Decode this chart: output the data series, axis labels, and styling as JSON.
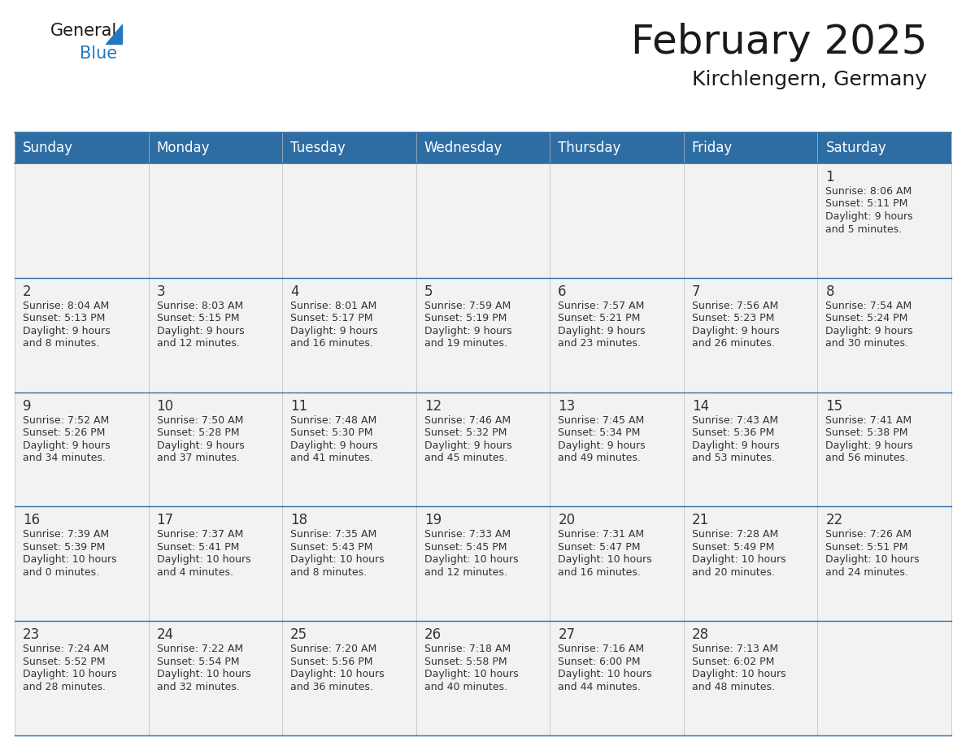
{
  "title": "February 2025",
  "subtitle": "Kirchlengern, Germany",
  "header_bg": "#2E6DA4",
  "header_text": "#FFFFFF",
  "border_color": "#2E6DA4",
  "cell_bg": "#F2F2F2",
  "text_color": "#333333",
  "day_names": [
    "Sunday",
    "Monday",
    "Tuesday",
    "Wednesday",
    "Thursday",
    "Friday",
    "Saturday"
  ],
  "days": [
    {
      "day": 1,
      "col": 6,
      "row": 0,
      "sunrise": "8:06 AM",
      "sunset": "5:11 PM",
      "daylight": "9 hours\nand 5 minutes."
    },
    {
      "day": 2,
      "col": 0,
      "row": 1,
      "sunrise": "8:04 AM",
      "sunset": "5:13 PM",
      "daylight": "9 hours\nand 8 minutes."
    },
    {
      "day": 3,
      "col": 1,
      "row": 1,
      "sunrise": "8:03 AM",
      "sunset": "5:15 PM",
      "daylight": "9 hours\nand 12 minutes."
    },
    {
      "day": 4,
      "col": 2,
      "row": 1,
      "sunrise": "8:01 AM",
      "sunset": "5:17 PM",
      "daylight": "9 hours\nand 16 minutes."
    },
    {
      "day": 5,
      "col": 3,
      "row": 1,
      "sunrise": "7:59 AM",
      "sunset": "5:19 PM",
      "daylight": "9 hours\nand 19 minutes."
    },
    {
      "day": 6,
      "col": 4,
      "row": 1,
      "sunrise": "7:57 AM",
      "sunset": "5:21 PM",
      "daylight": "9 hours\nand 23 minutes."
    },
    {
      "day": 7,
      "col": 5,
      "row": 1,
      "sunrise": "7:56 AM",
      "sunset": "5:23 PM",
      "daylight": "9 hours\nand 26 minutes."
    },
    {
      "day": 8,
      "col": 6,
      "row": 1,
      "sunrise": "7:54 AM",
      "sunset": "5:24 PM",
      "daylight": "9 hours\nand 30 minutes."
    },
    {
      "day": 9,
      "col": 0,
      "row": 2,
      "sunrise": "7:52 AM",
      "sunset": "5:26 PM",
      "daylight": "9 hours\nand 34 minutes."
    },
    {
      "day": 10,
      "col": 1,
      "row": 2,
      "sunrise": "7:50 AM",
      "sunset": "5:28 PM",
      "daylight": "9 hours\nand 37 minutes."
    },
    {
      "day": 11,
      "col": 2,
      "row": 2,
      "sunrise": "7:48 AM",
      "sunset": "5:30 PM",
      "daylight": "9 hours\nand 41 minutes."
    },
    {
      "day": 12,
      "col": 3,
      "row": 2,
      "sunrise": "7:46 AM",
      "sunset": "5:32 PM",
      "daylight": "9 hours\nand 45 minutes."
    },
    {
      "day": 13,
      "col": 4,
      "row": 2,
      "sunrise": "7:45 AM",
      "sunset": "5:34 PM",
      "daylight": "9 hours\nand 49 minutes."
    },
    {
      "day": 14,
      "col": 5,
      "row": 2,
      "sunrise": "7:43 AM",
      "sunset": "5:36 PM",
      "daylight": "9 hours\nand 53 minutes."
    },
    {
      "day": 15,
      "col": 6,
      "row": 2,
      "sunrise": "7:41 AM",
      "sunset": "5:38 PM",
      "daylight": "9 hours\nand 56 minutes."
    },
    {
      "day": 16,
      "col": 0,
      "row": 3,
      "sunrise": "7:39 AM",
      "sunset": "5:39 PM",
      "daylight": "10 hours\nand 0 minutes."
    },
    {
      "day": 17,
      "col": 1,
      "row": 3,
      "sunrise": "7:37 AM",
      "sunset": "5:41 PM",
      "daylight": "10 hours\nand 4 minutes."
    },
    {
      "day": 18,
      "col": 2,
      "row": 3,
      "sunrise": "7:35 AM",
      "sunset": "5:43 PM",
      "daylight": "10 hours\nand 8 minutes."
    },
    {
      "day": 19,
      "col": 3,
      "row": 3,
      "sunrise": "7:33 AM",
      "sunset": "5:45 PM",
      "daylight": "10 hours\nand 12 minutes."
    },
    {
      "day": 20,
      "col": 4,
      "row": 3,
      "sunrise": "7:31 AM",
      "sunset": "5:47 PM",
      "daylight": "10 hours\nand 16 minutes."
    },
    {
      "day": 21,
      "col": 5,
      "row": 3,
      "sunrise": "7:28 AM",
      "sunset": "5:49 PM",
      "daylight": "10 hours\nand 20 minutes."
    },
    {
      "day": 22,
      "col": 6,
      "row": 3,
      "sunrise": "7:26 AM",
      "sunset": "5:51 PM",
      "daylight": "10 hours\nand 24 minutes."
    },
    {
      "day": 23,
      "col": 0,
      "row": 4,
      "sunrise": "7:24 AM",
      "sunset": "5:52 PM",
      "daylight": "10 hours\nand 28 minutes."
    },
    {
      "day": 24,
      "col": 1,
      "row": 4,
      "sunrise": "7:22 AM",
      "sunset": "5:54 PM",
      "daylight": "10 hours\nand 32 minutes."
    },
    {
      "day": 25,
      "col": 2,
      "row": 4,
      "sunrise": "7:20 AM",
      "sunset": "5:56 PM",
      "daylight": "10 hours\nand 36 minutes."
    },
    {
      "day": 26,
      "col": 3,
      "row": 4,
      "sunrise": "7:18 AM",
      "sunset": "5:58 PM",
      "daylight": "10 hours\nand 40 minutes."
    },
    {
      "day": 27,
      "col": 4,
      "row": 4,
      "sunrise": "7:16 AM",
      "sunset": "6:00 PM",
      "daylight": "10 hours\nand 44 minutes."
    },
    {
      "day": 28,
      "col": 5,
      "row": 4,
      "sunrise": "7:13 AM",
      "sunset": "6:02 PM",
      "daylight": "10 hours\nand 48 minutes."
    }
  ],
  "num_rows": 5,
  "num_cols": 7,
  "logo_color_general": "#1a1a1a",
  "logo_color_blue": "#2479BD",
  "title_fontsize": 36,
  "subtitle_fontsize": 18,
  "header_fontsize": 12,
  "day_num_fontsize": 12,
  "cell_text_fontsize": 9
}
